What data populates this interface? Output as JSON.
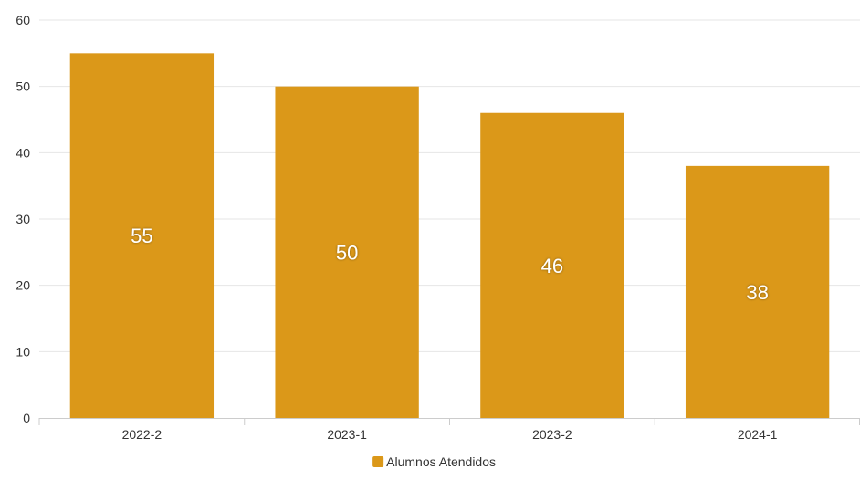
{
  "chart_data": {
    "type": "bar",
    "categories": [
      "2022-2",
      "2023-1",
      "2023-2",
      "2024-1"
    ],
    "series": [
      {
        "name": "Alumnos Atendidos",
        "values": [
          55,
          50,
          46,
          38
        ],
        "color": "#DB9819"
      }
    ],
    "ylim": [
      0,
      60
    ],
    "yticks": [
      0,
      10,
      20,
      30,
      40,
      50,
      60
    ],
    "grid": true,
    "data_labels": true,
    "legend": "bottom-center"
  },
  "colors": {
    "grid": "#e6e6e6",
    "axis": "#cccccc",
    "text": "#333333",
    "data_label": "#ffffff"
  }
}
